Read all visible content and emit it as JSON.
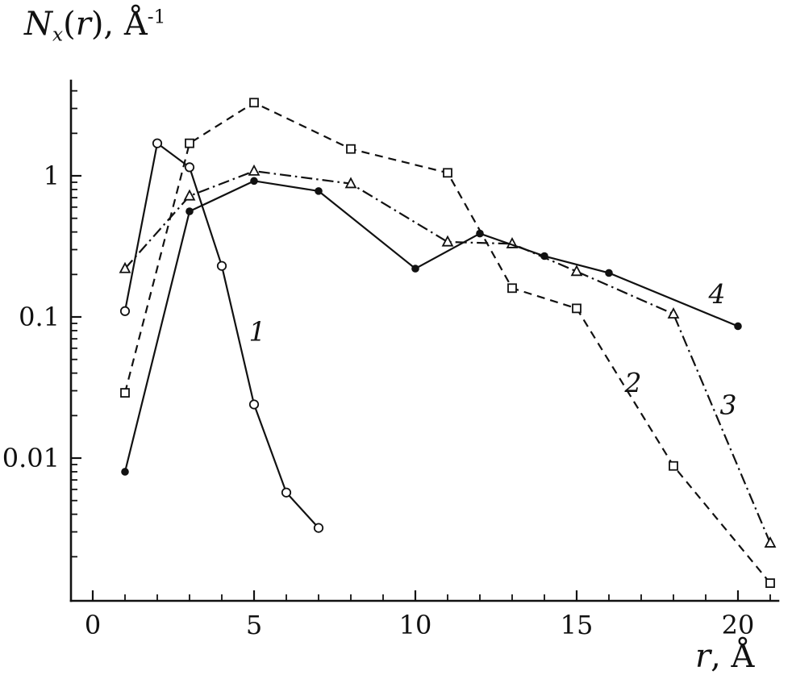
{
  "figure": {
    "background": "#ffffff",
    "ink": "#111111",
    "title_parts": [
      {
        "text": "N",
        "style": "italic"
      },
      {
        "text": "x",
        "style": "sub"
      },
      {
        "text": "(",
        "style": "normal"
      },
      {
        "text": "r",
        "style": "italic"
      },
      {
        "text": "), ",
        "style": "normal"
      },
      {
        "text": "Å",
        "style": "normal"
      },
      {
        "text": "-1",
        "style": "sup"
      }
    ],
    "xlabel_parts": [
      {
        "text": "r",
        "style": "italic"
      },
      {
        "text": ", Å",
        "style": "normal"
      }
    ]
  },
  "chart_data": {
    "type": "line",
    "title": "Nx(r), Å⁻¹",
    "xlabel": "r, Å",
    "ylabel": "Nx(r), Å⁻¹",
    "grid": false,
    "legend": "none",
    "x_axis": {
      "min": 0,
      "max": 21.3,
      "major_ticks": [
        0,
        5,
        10,
        15,
        20
      ],
      "tick_labels": [
        "0",
        "5",
        "10",
        "15",
        "20"
      ],
      "minor_tick_step": 1
    },
    "y_axis": {
      "scale": "log",
      "min": 0.001,
      "max": 4.7,
      "major_ticks": [
        1,
        0.1,
        0.01
      ],
      "tick_labels": [
        "1",
        "0.1",
        "0.01"
      ]
    },
    "series": [
      {
        "name": "1",
        "marker": "open-circle",
        "line_style": "solid",
        "x": [
          1,
          2,
          3,
          4,
          5,
          6,
          7
        ],
        "y": [
          0.11,
          1.7,
          1.15,
          0.23,
          0.024,
          0.0057,
          0.0032
        ],
        "label": {
          "text": "1",
          "x": 5.1,
          "y": 0.068
        }
      },
      {
        "name": "2",
        "marker": "open-square",
        "line_style": "dashed",
        "x": [
          1,
          3,
          5,
          8,
          11,
          13,
          15,
          18,
          21
        ],
        "y": [
          0.029,
          1.7,
          3.3,
          1.55,
          1.05,
          0.16,
          0.115,
          0.0088,
          0.0013
        ],
        "label": {
          "text": "2",
          "x": 16.75,
          "y": 0.0295
        }
      },
      {
        "name": "3",
        "marker": "open-triangle",
        "line_style": "dashdot",
        "x": [
          1,
          3,
          5,
          8,
          11,
          13,
          15,
          18,
          21
        ],
        "y": [
          0.22,
          0.72,
          1.08,
          0.88,
          0.34,
          0.33,
          0.21,
          0.105,
          0.0025
        ],
        "label": {
          "text": "3",
          "x": 19.7,
          "y": 0.0205
        }
      },
      {
        "name": "4",
        "marker": "filled-circle",
        "line_style": "solid",
        "x": [
          1,
          3,
          5,
          7,
          10,
          12,
          14,
          16,
          20
        ],
        "y": [
          0.008,
          0.56,
          0.92,
          0.78,
          0.22,
          0.39,
          0.27,
          0.205,
          0.086
        ],
        "label": {
          "text": "4",
          "x": 19.35,
          "y": 0.125
        }
      }
    ]
  }
}
